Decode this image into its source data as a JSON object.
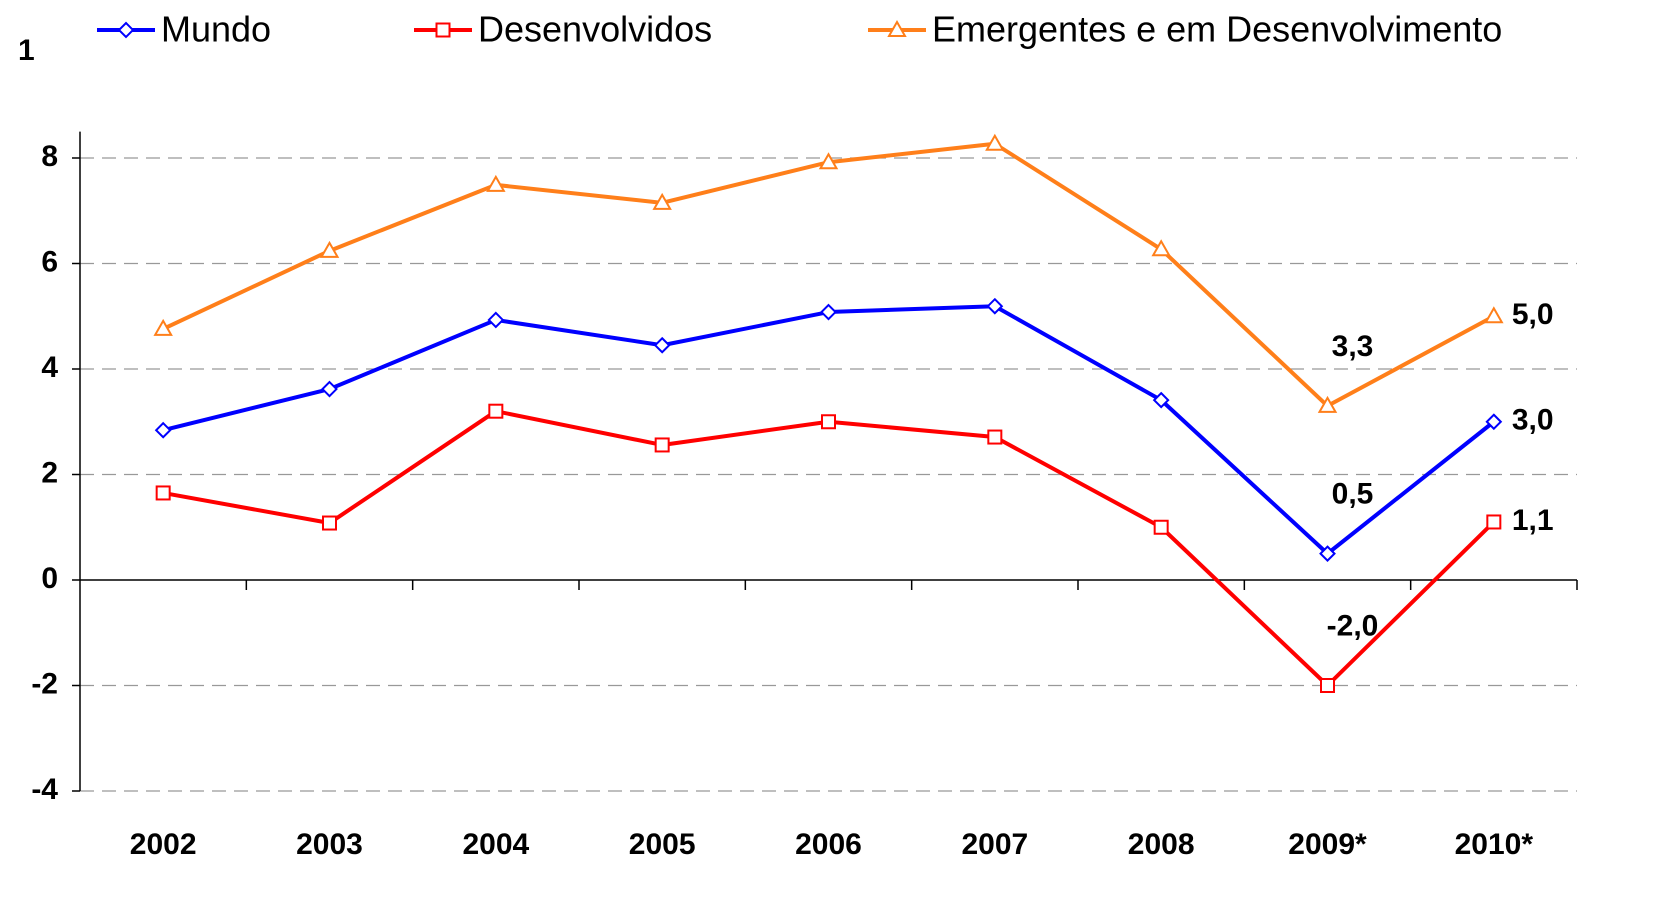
{
  "chart_data": {
    "type": "line",
    "annotations": [
      "1"
    ],
    "categories": [
      "2002",
      "2003",
      "2004",
      "2005",
      "2006",
      "2007",
      "2008",
      "2009*",
      "2010*"
    ],
    "series": [
      {
        "name": "Mundo",
        "color": "#0000ff",
        "marker": "diamond",
        "values": [
          2.84,
          3.62,
          4.93,
          4.45,
          5.08,
          5.19,
          3.41,
          0.5,
          3.0
        ],
        "value_labels": [
          null,
          null,
          null,
          null,
          null,
          null,
          null,
          "0,5",
          "3,0"
        ]
      },
      {
        "name": "Desenvolvidos",
        "color": "#ff0000",
        "marker": "square",
        "values": [
          1.65,
          1.08,
          3.2,
          2.56,
          3.0,
          2.71,
          1.0,
          -2.0,
          1.1
        ],
        "value_labels": [
          null,
          null,
          null,
          null,
          null,
          null,
          null,
          "-2,0",
          "1,1"
        ]
      },
      {
        "name": "Emergentes e em Desenvolvimento",
        "color": "#ff7f1a",
        "marker": "triangle",
        "values": [
          4.76,
          6.24,
          7.49,
          7.15,
          7.92,
          8.27,
          6.27,
          3.3,
          5.0
        ],
        "value_labels": [
          null,
          null,
          null,
          null,
          null,
          null,
          null,
          "3,3",
          "5,0"
        ]
      }
    ],
    "ylim": [
      -4,
      8.5
    ],
    "yticks": [
      -4,
      -2,
      0,
      2,
      4,
      6,
      8
    ],
    "grid": true
  }
}
